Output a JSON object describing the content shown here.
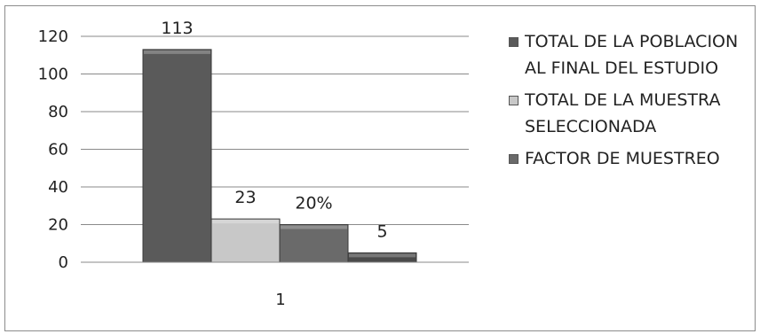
{
  "chart_data": {
    "type": "bar",
    "categories": [
      "1"
    ],
    "series": [
      {
        "name": "TOTAL DE LA POBLACION AL FINAL DEL ESTUDIO",
        "values": [
          113
        ],
        "label": "113",
        "color": "#5a5a5a"
      },
      {
        "name": "TOTAL DE LA MUESTRA SELECCIONADA",
        "values": [
          23
        ],
        "label": "23",
        "color": "#c8c8c8"
      },
      {
        "name": "FACTOR DE MUESTREO",
        "values": [
          20
        ],
        "label": "20%",
        "color": "#6a6a6a"
      },
      {
        "name": "",
        "values": [
          5
        ],
        "label": "5",
        "color": "#4a4a4a"
      }
    ],
    "yticks": [
      "0",
      "20",
      "40",
      "60",
      "80",
      "100",
      "120"
    ],
    "ylim": [
      0,
      120
    ],
    "grid": true,
    "legend_position": "right"
  }
}
